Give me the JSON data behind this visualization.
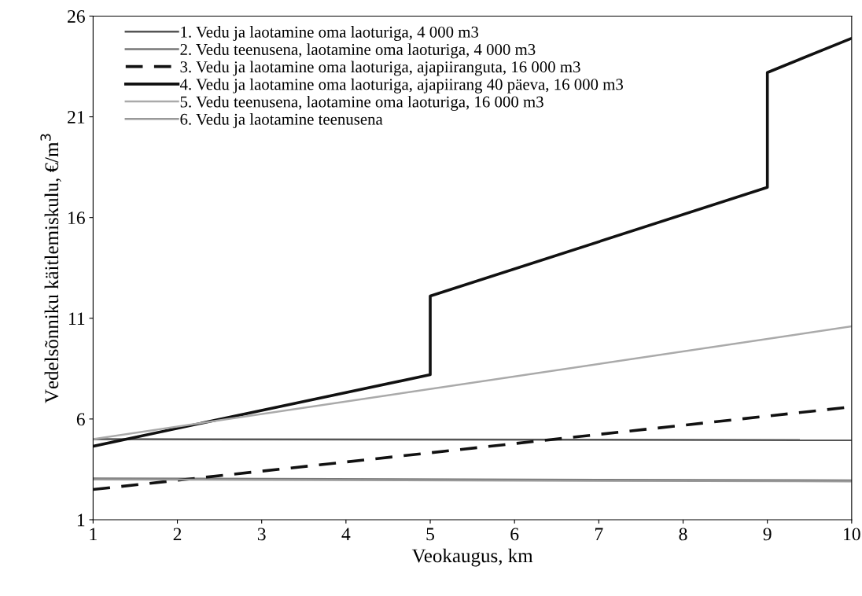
{
  "chart_data": {
    "type": "line",
    "xlabel": "Veokaugus, km",
    "ylabel": "Vedelsõnniku käitlemiskulu, €/m$^{3}$",
    "xlim": [
      1,
      10
    ],
    "xticks": [
      1,
      2,
      3,
      4,
      5,
      6,
      7,
      8,
      9,
      10
    ],
    "ylim": [
      1,
      26
    ],
    "yticks": [
      1,
      6,
      11,
      16,
      21,
      26
    ],
    "grid": false,
    "legend": "top left",
    "marker": "none",
    "series": [
      {
        "name": "1. Vedu ja laotamine oma laoturiga, 4 000 m3",
        "color": "#555555",
        "x": [
          1,
          10
        ],
        "values": [
          5.0,
          4.95
        ]
      },
      {
        "name": "2. Vedu teenusena, laotamine oma laoturiga, 4 000 m3",
        "color": "#777777",
        "x": [
          1,
          10
        ],
        "values": [
          3.05,
          2.95
        ]
      },
      {
        "name": "3. Vedu ja laotamine oma laoturiga, ajapiiranguta, 16 000 m3",
        "color": "#111111",
        "line_style": "dashed",
        "x": [
          1,
          10
        ],
        "values": [
          2.5,
          6.6
        ]
      },
      {
        "name": "4. Vedu ja laotamine oma laoturiga, ajapiirang 40 päeva, 16 000 m3",
        "color": "#111111",
        "x": [
          1,
          5,
          5,
          9,
          9,
          10
        ],
        "values": [
          4.65,
          8.2,
          12.1,
          17.5,
          23.2,
          24.9
        ]
      },
      {
        "name": "5. Vedu teenusena, laotamine oma laoturiga, 16 000 m3",
        "color": "#aaaaaa",
        "x": [
          1,
          10
        ],
        "values": [
          5.0,
          10.6
        ]
      },
      {
        "name": "6. Vedu ja laotamine teenusena",
        "color": "#999999",
        "x": [
          1,
          10
        ],
        "values": [
          3.0,
          2.9
        ]
      }
    ]
  }
}
